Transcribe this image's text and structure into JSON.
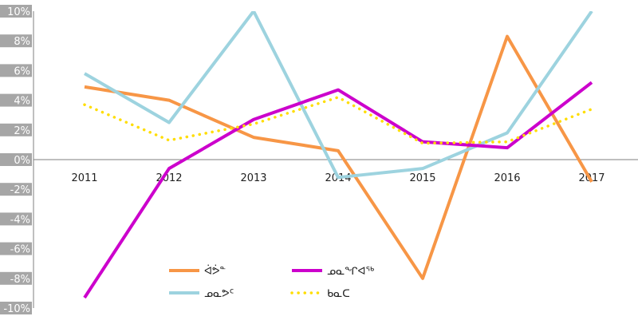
{
  "chart_data": {
    "type": "line",
    "title": "",
    "xlabel": "",
    "ylabel": "",
    "categories": [
      "2011",
      "2012",
      "2013",
      "2014",
      "2015",
      "2016",
      "2017"
    ],
    "yticks": [
      "10%",
      "8%",
      "6%",
      "4%",
      "2%",
      "0%",
      "-2%",
      "-4%",
      "-6%",
      "-8%",
      "-10%"
    ],
    "ylim": [
      -10,
      10
    ],
    "grid": false,
    "legend_position": "bottom",
    "series": [
      {
        "name": "ᐋᕘᓐ",
        "color": "#f79646",
        "dash": "solid",
        "values": [
          4.9,
          4.0,
          1.5,
          0.6,
          -8.0,
          8.3,
          -1.5
        ]
      },
      {
        "name": "ᓄᓇᕗᑦ",
        "color": "#9dd3df",
        "dash": "solid",
        "values": [
          5.8,
          2.5,
          10.0,
          -1.2,
          -0.6,
          1.8,
          10.0
        ]
      },
      {
        "name": "ᓄᓇᖏᐊᖅ",
        "color": "#cc00cc",
        "dash": "solid",
        "values": [
          -9.3,
          -0.6,
          2.7,
          4.7,
          1.2,
          0.8,
          5.2
        ]
      },
      {
        "name": "ᑲᓇᑕ",
        "color": "#ffdd00",
        "dash": "dotted",
        "values": [
          3.7,
          1.3,
          2.4,
          4.2,
          1.1,
          1.2,
          3.4
        ]
      }
    ]
  }
}
